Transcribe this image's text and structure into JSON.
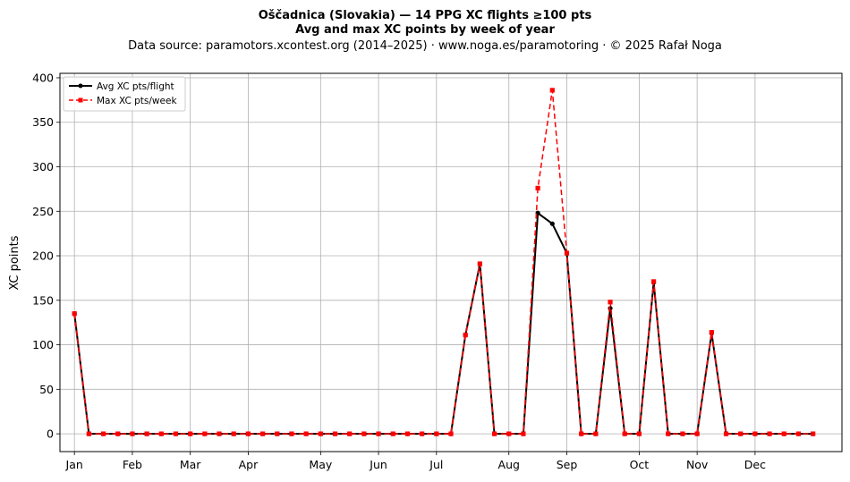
{
  "chart_data": {
    "type": "line",
    "title": "Oščadnica (Slovakia)  —  14 PPG XC flights ≥100 pts",
    "subtitle": "Avg and max XC points by week of year",
    "source": "Data source: paramotors.xcontest.org (2014–2025)  ·  www.noga.es/paramotoring  ·  © 2025 Rafał Noga",
    "xlabel": "",
    "ylabel": "XC points",
    "xlim": [
      -1,
      53
    ],
    "ylim": [
      -20,
      405
    ],
    "x_ticks": [
      {
        "week": 0,
        "label": "Jan"
      },
      {
        "week": 4,
        "label": "Feb"
      },
      {
        "week": 8,
        "label": "Mar"
      },
      {
        "week": 12,
        "label": "Apr"
      },
      {
        "week": 17,
        "label": "May"
      },
      {
        "week": 21,
        "label": "Jun"
      },
      {
        "week": 25,
        "label": "Jul"
      },
      {
        "week": 30,
        "label": "Aug"
      },
      {
        "week": 34,
        "label": "Sep"
      },
      {
        "week": 39,
        "label": "Oct"
      },
      {
        "week": 43,
        "label": "Nov"
      },
      {
        "week": 47,
        "label": "Dec"
      }
    ],
    "y_ticks": [
      0,
      50,
      100,
      150,
      200,
      250,
      300,
      350,
      400
    ],
    "grid": true,
    "legend_position": "upper-left",
    "x": [
      0,
      1,
      2,
      3,
      4,
      5,
      6,
      7,
      8,
      9,
      10,
      11,
      12,
      13,
      14,
      15,
      16,
      17,
      18,
      19,
      20,
      21,
      22,
      23,
      24,
      25,
      26,
      27,
      28,
      29,
      30,
      31,
      32,
      33,
      34,
      35,
      36,
      37,
      38,
      39,
      40,
      41,
      42,
      43,
      44,
      45,
      46,
      47,
      48,
      49,
      50,
      51
    ],
    "series": [
      {
        "name": "Avg XC pts/flight",
        "color": "#000000",
        "style": "solid",
        "marker": "circle",
        "values": [
          135,
          0,
          0,
          0,
          0,
          0,
          0,
          0,
          0,
          0,
          0,
          0,
          0,
          0,
          0,
          0,
          0,
          0,
          0,
          0,
          0,
          0,
          0,
          0,
          0,
          0,
          0,
          111,
          191,
          0,
          0,
          0,
          248,
          236,
          203,
          0,
          0,
          141,
          0,
          0,
          170,
          0,
          0,
          0,
          113,
          0,
          0,
          0,
          0,
          0,
          0,
          0
        ]
      },
      {
        "name": "Max XC pts/week",
        "color": "#ff0000",
        "style": "dashed",
        "marker": "square",
        "values": [
          135,
          0,
          0,
          0,
          0,
          0,
          0,
          0,
          0,
          0,
          0,
          0,
          0,
          0,
          0,
          0,
          0,
          0,
          0,
          0,
          0,
          0,
          0,
          0,
          0,
          0,
          0,
          111,
          191,
          0,
          0,
          0,
          276,
          386,
          203,
          0,
          0,
          148,
          0,
          0,
          171,
          0,
          0,
          0,
          114,
          0,
          0,
          0,
          0,
          0,
          0,
          0
        ]
      }
    ]
  }
}
